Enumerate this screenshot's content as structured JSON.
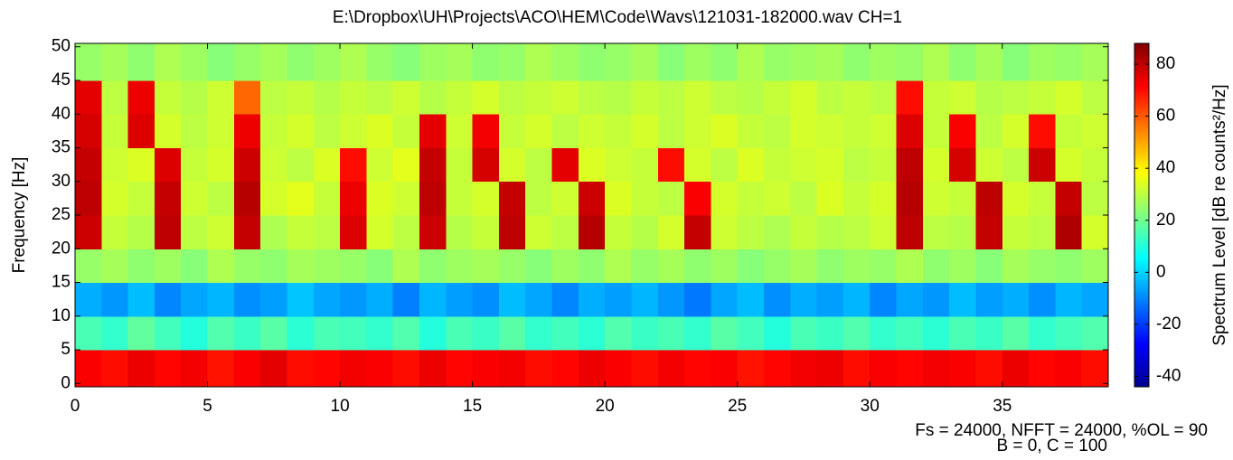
{
  "chart_data": {
    "type": "heatmap",
    "title": "E:\\Dropbox\\UH\\Projects\\ACO\\HEM\\Code\\Wavs\\121031-182000.wav CH=1",
    "y_label": "Frequency [Hz]",
    "colorbar_label": "Spectrum Level [dB re counts²/Hz]",
    "annotations": [
      "Fs = 24000, NFFT = 24000, %OL = 90",
      "B = 0, C = 100"
    ],
    "colormap": "jet",
    "xlim": [
      0,
      39
    ],
    "xticks": [
      0,
      5,
      10,
      15,
      20,
      25,
      30,
      35
    ],
    "ylim": [
      -0.5,
      50.5
    ],
    "yticks": [
      0,
      5,
      10,
      15,
      20,
      25,
      30,
      35,
      40,
      45,
      50
    ],
    "clim": [
      -44,
      88
    ],
    "cticks": [
      -40,
      -20,
      0,
      20,
      40,
      60,
      80
    ],
    "xbins": [
      0,
      1,
      2,
      3,
      4,
      5,
      6,
      7,
      8,
      9,
      10,
      11,
      12,
      13,
      14,
      15,
      16,
      17,
      18,
      19,
      20,
      21,
      22,
      23,
      24,
      25,
      26,
      27,
      28,
      29,
      30,
      31,
      32,
      33,
      34,
      35,
      36,
      37,
      38,
      39
    ],
    "ybins": [
      -0.5,
      5,
      10,
      15,
      20,
      25,
      30,
      35,
      40,
      45,
      50.5
    ],
    "z": [
      [
        72,
        70,
        74,
        71,
        73,
        69,
        72,
        75,
        70,
        71,
        73,
        72,
        70,
        74,
        71,
        72,
        73,
        70,
        71,
        74,
        72,
        70,
        73,
        71,
        72,
        69,
        71,
        73,
        74,
        70,
        72,
        71,
        73,
        72,
        70,
        74,
        71,
        72,
        70
      ],
      [
        15,
        12,
        18,
        14,
        10,
        16,
        13,
        17,
        11,
        15,
        14,
        12,
        16,
        10,
        15,
        13,
        17,
        12,
        14,
        11,
        16,
        13,
        15,
        12,
        17,
        14,
        10,
        15,
        13,
        16,
        12,
        14,
        11,
        15,
        13,
        17,
        12,
        14,
        16
      ],
      [
        -5,
        -8,
        -3,
        -10,
        -6,
        -4,
        -9,
        -7,
        -2,
        -6,
        -8,
        -5,
        -11,
        -4,
        -7,
        -9,
        -3,
        -6,
        -10,
        -5,
        -7,
        -4,
        -8,
        -12,
        -6,
        -3,
        -9,
        -5,
        -7,
        -4,
        -10,
        -6,
        -8,
        -3,
        -7,
        -5,
        -9,
        -4,
        -6
      ],
      [
        25,
        27,
        24,
        26,
        23,
        28,
        25,
        24,
        27,
        26,
        25,
        23,
        28,
        24,
        26,
        27,
        25,
        23,
        26,
        24,
        28,
        25,
        27,
        24,
        26,
        23,
        25,
        27,
        24,
        26,
        25,
        28,
        24,
        26,
        23,
        27,
        25,
        24,
        26
      ],
      [
        78,
        31,
        29,
        80,
        30,
        32,
        79,
        28,
        31,
        30,
        76,
        33,
        30,
        78,
        29,
        31,
        80,
        32,
        30,
        81,
        31,
        29,
        33,
        79,
        32,
        30,
        28,
        31,
        29,
        30,
        32,
        80,
        30,
        29,
        79,
        31,
        30,
        82,
        33
      ],
      [
        80,
        33,
        31,
        79,
        32,
        30,
        81,
        33,
        35,
        31,
        74,
        34,
        32,
        80,
        31,
        33,
        79,
        30,
        32,
        78,
        34,
        31,
        30,
        72,
        33,
        31,
        32,
        30,
        34,
        31,
        33,
        81,
        32,
        31,
        80,
        33,
        31,
        79,
        30
      ],
      [
        79,
        32,
        34,
        76,
        31,
        33,
        78,
        32,
        30,
        34,
        70,
        32,
        35,
        79,
        31,
        77,
        33,
        30,
        75,
        34,
        32,
        31,
        70,
        33,
        30,
        34,
        31,
        32,
        33,
        30,
        31,
        80,
        33,
        77,
        32,
        30,
        78,
        33,
        31
      ],
      [
        77,
        31,
        76,
        33,
        30,
        32,
        74,
        31,
        33,
        30,
        32,
        34,
        31,
        75,
        32,
        73,
        31,
        33,
        30,
        32,
        31,
        33,
        30,
        32,
        34,
        31,
        30,
        33,
        32,
        31,
        32,
        76,
        31,
        72,
        30,
        33,
        70,
        31,
        32
      ],
      [
        75,
        30,
        74,
        31,
        29,
        32,
        58,
        30,
        31,
        29,
        31,
        30,
        32,
        29,
        31,
        33,
        30,
        31,
        32,
        30,
        29,
        31,
        30,
        32,
        30,
        29,
        31,
        33,
        30,
        31,
        30,
        70,
        31,
        32,
        29,
        30,
        31,
        33,
        30
      ],
      [
        25,
        27,
        24,
        28,
        26,
        23,
        25,
        27,
        24,
        26,
        28,
        25,
        23,
        26,
        27,
        24,
        25,
        28,
        26,
        24,
        25,
        27,
        23,
        26,
        24,
        28,
        25,
        26,
        27,
        24,
        26,
        25,
        28,
        24,
        27,
        23,
        26,
        25,
        27
      ]
    ]
  }
}
